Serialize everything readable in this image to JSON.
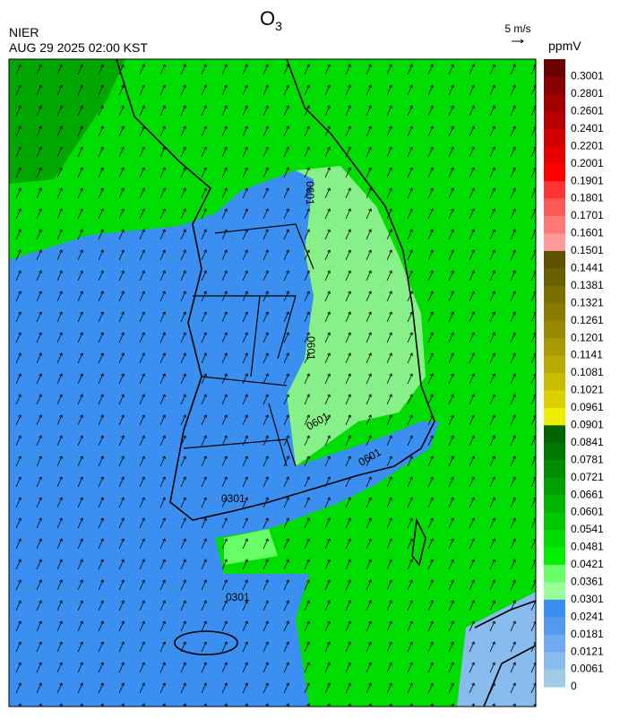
{
  "header": {
    "title": {
      "main": "O",
      "subscript": "3"
    },
    "agency": "NIER",
    "datetime": "AUG 29 2025 02:00 KST",
    "wind_scale": "5 m/s"
  },
  "colorbar": {
    "unit": "ppmV",
    "ticks": [
      0.3001,
      0.2801,
      0.2601,
      0.2401,
      0.2201,
      0.2001,
      0.1901,
      0.1801,
      0.1701,
      0.1601,
      0.1501,
      0.1441,
      0.1381,
      0.1321,
      0.1261,
      0.1201,
      0.1141,
      0.1081,
      0.1021,
      0.0961,
      0.0901,
      0.0841,
      0.0781,
      0.0721,
      0.0661,
      0.0601,
      0.0541,
      0.0481,
      0.0421,
      0.0361,
      0.0301,
      0.0241,
      0.0181,
      0.0121,
      0.0061,
      0
    ],
    "colors": [
      "#6b0000",
      "#870000",
      "#a00000",
      "#b80000",
      "#d00000",
      "#e80000",
      "#ff0000",
      "#ff3333",
      "#ff5a5a",
      "#ff7878",
      "#ff9a9a",
      "#5c5200",
      "#6b6000",
      "#7a6e00",
      "#897c00",
      "#988a00",
      "#a89a00",
      "#b8aa00",
      "#c9bb00",
      "#dcd000",
      "#eeee00",
      "#006400",
      "#007800",
      "#008c00",
      "#00a000",
      "#00b400",
      "#00c800",
      "#00dc00",
      "#00f000",
      "#66ff66",
      "#99ff99",
      "#3a8ff0",
      "#5599ee",
      "#70aaee",
      "#88bbee",
      "#a0cce8"
    ]
  },
  "contour_labels": [
    "0301",
    "0301",
    "0601",
    "0601",
    "0601",
    "0601"
  ]
}
